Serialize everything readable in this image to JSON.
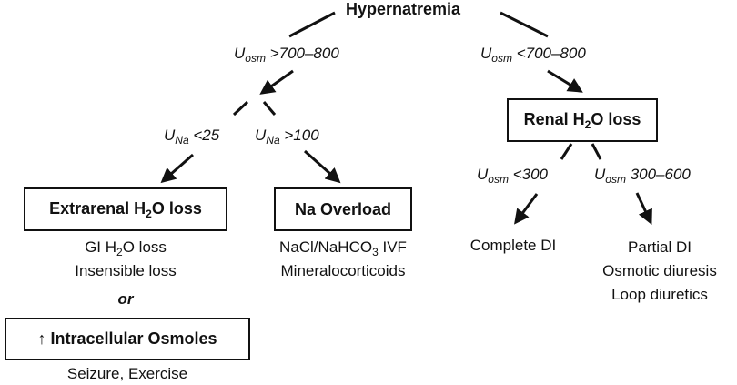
{
  "root": {
    "title": "Hypernatremia"
  },
  "branches": {
    "left_label": {
      "var": "U",
      "sub": "osm",
      "cond": ">700–800"
    },
    "right_label": {
      "var": "U",
      "sub": "osm",
      "cond": "<700–800"
    },
    "una_low": {
      "var": "U",
      "sub": "Na",
      "cond": "<25"
    },
    "una_high": {
      "var": "U",
      "sub": "Na",
      "cond": ">100"
    },
    "uosm_low": {
      "var": "U",
      "sub": "osm",
      "cond": "<300"
    },
    "uosm_mid": {
      "var": "U",
      "sub": "osm",
      "cond": "300–600"
    }
  },
  "boxes": {
    "renal": {
      "pre": "Renal H",
      "sub": "2",
      "post": "O loss"
    },
    "extrarenal": {
      "pre": "Extrarenal H",
      "sub": "2",
      "post": "O loss"
    },
    "na_overload": {
      "text": "Na Overload"
    },
    "intracellular": {
      "arrow": "↑",
      "text": " Intracellular Osmoles"
    }
  },
  "causes": {
    "extrarenal": {
      "line1": {
        "pre": "GI H",
        "sub": "2",
        "post": "O loss"
      },
      "line2": "Insensible loss",
      "or": "or"
    },
    "na_overload": {
      "line1": {
        "pre": "NaCl/NaHCO",
        "sub": "3",
        "post": " IVF"
      },
      "line2": "Mineralocorticoids"
    },
    "intracellular": {
      "line1": "Seizure, Exercise"
    },
    "complete_di": {
      "line1": "Complete DI"
    },
    "partial_di": {
      "line1": "Partial DI",
      "line2": "Osmotic diuresis",
      "line3": "Loop diuretics"
    }
  },
  "colors": {
    "ink": "#111111",
    "background": "#ffffff"
  }
}
